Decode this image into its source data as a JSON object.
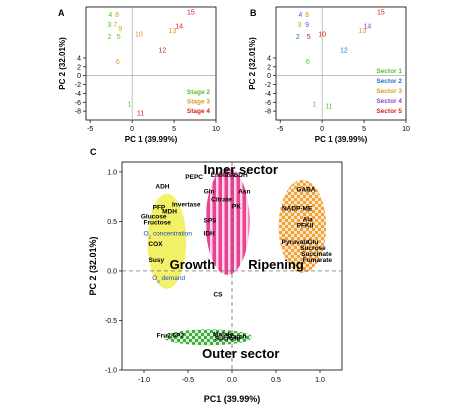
{
  "chart_data": [
    {
      "panel": "A",
      "type": "scatter",
      "xlabel": "PC 1 (39.99%)",
      "ylabel": "PC 2 (32.01%)",
      "xlim": [
        -5.5,
        10
      ],
      "ylim": [
        -10,
        15.5
      ],
      "xticks": [
        "-5",
        "0",
        "5",
        "10"
      ],
      "yticks": [
        "-8",
        "-6",
        "-4",
        "-2",
        "0",
        "2",
        "4"
      ],
      "colors": {
        "Stage 2": "#55c130",
        "Stage 3": "#d99a21",
        "Stage 4": "#d22222"
      },
      "legend": [
        "Stage 2",
        "Stage 3",
        "Stage 4"
      ],
      "legend_position": "bottom-right",
      "points": [
        {
          "label": "4",
          "x": -2.6,
          "y": 13.8,
          "group": "Stage 2"
        },
        {
          "label": "8",
          "x": -1.8,
          "y": 13.8,
          "group": "Stage 3"
        },
        {
          "label": "3",
          "x": -2.7,
          "y": 11.6,
          "group": "Stage 2"
        },
        {
          "label": "7",
          "x": -2.0,
          "y": 11.6,
          "group": "Stage 3"
        },
        {
          "label": "9",
          "x": -1.4,
          "y": 10.6,
          "group": "Stage 3"
        },
        {
          "label": "2",
          "x": -2.7,
          "y": 8.8,
          "group": "Stage 2"
        },
        {
          "label": "5",
          "x": -1.6,
          "y": 8.8,
          "group": "Stage 2"
        },
        {
          "label": "10",
          "x": 0.8,
          "y": 9.4,
          "group": "Stage 3"
        },
        {
          "label": "6",
          "x": -1.7,
          "y": 3.2,
          "group": "Stage 3"
        },
        {
          "label": "1",
          "x": -0.3,
          "y": -6.4,
          "group": "Stage 2"
        },
        {
          "label": "11",
          "x": 1.0,
          "y": -8.4,
          "group": "Stage 4"
        },
        {
          "label": "12",
          "x": 3.6,
          "y": 5.8,
          "group": "Stage 4"
        },
        {
          "label": "13",
          "x": 4.8,
          "y": 10.2,
          "group": "Stage 3"
        },
        {
          "label": "14",
          "x": 5.6,
          "y": 11.2,
          "group": "Stage 4"
        },
        {
          "label": "15",
          "x": 7.0,
          "y": 14.4,
          "group": "Stage 4"
        }
      ]
    },
    {
      "panel": "B",
      "type": "scatter",
      "xlabel": "PC 1 (39.99%)",
      "ylabel": "PC 2 (32.01%)",
      "xlim": [
        -5.5,
        10
      ],
      "ylim": [
        -10,
        15.5
      ],
      "xticks": [
        "-5",
        "0",
        "5",
        "10"
      ],
      "yticks": [
        "-8",
        "-6",
        "-4",
        "-2",
        "0",
        "2",
        "4"
      ],
      "colors": {
        "Sector 1": "#55c130",
        "Sector 2": "#1f6fd1",
        "Sector 3": "#d99a21",
        "Sector 4": "#8a44d0",
        "Sector 5": "#d22222"
      },
      "legend": [
        "Sector 1",
        "Sector 2",
        "Sector 3",
        "Sector 4",
        "Sector 5"
      ],
      "legend_position": "right",
      "points": [
        {
          "label": "4",
          "x": -2.6,
          "y": 13.8,
          "group": "Sector 4"
        },
        {
          "label": "8",
          "x": -1.8,
          "y": 13.8,
          "group": "Sector 3"
        },
        {
          "label": "3",
          "x": -2.7,
          "y": 11.6,
          "group": "Sector 3"
        },
        {
          "label": "9",
          "x": -1.8,
          "y": 11.6,
          "group": "Sector 4"
        },
        {
          "label": "2",
          "x": -2.9,
          "y": 8.8,
          "group": "Sector 2"
        },
        {
          "label": "5",
          "x": -1.6,
          "y": 8.8,
          "group": "Sector 5"
        },
        {
          "label": "10",
          "x": 0.0,
          "y": 9.4,
          "group": "Sector 5"
        },
        {
          "label": "6",
          "x": -1.7,
          "y": 3.2,
          "group": "Sector 1"
        },
        {
          "label": "1",
          "x": -0.9,
          "y": -6.4,
          "group": "Sector 1"
        },
        {
          "label": "11",
          "x": 0.8,
          "y": -6.8,
          "group": "Sector 1"
        },
        {
          "label": "12",
          "x": 2.6,
          "y": 5.8,
          "group": "Sector 2"
        },
        {
          "label": "13",
          "x": 4.8,
          "y": 10.2,
          "group": "Sector 3"
        },
        {
          "label": "14",
          "x": 5.4,
          "y": 11.2,
          "group": "Sector 4"
        },
        {
          "label": "15",
          "x": 7.0,
          "y": 14.4,
          "group": "Sector 5"
        }
      ]
    },
    {
      "panel": "C",
      "type": "scatter",
      "xlabel": "PC1 (39.99%)",
      "ylabel": "PC 2 (32.01%)",
      "xlim": [
        -1.25,
        1.25
      ],
      "ylim": [
        -1.0,
        1.1
      ],
      "xticks": [
        "-1.0",
        "-0.5",
        "0.0",
        "0.5",
        "1.0"
      ],
      "yticks": [
        "-1.0",
        "-0.5",
        "0.0",
        "0.5",
        "1.0"
      ],
      "region_labels": [
        "Inner sector",
        "Outer sector",
        "Growth",
        "Ripening"
      ],
      "clusters": [
        {
          "name": "growth",
          "color": "#f2f05a",
          "pattern": "solid",
          "cx": -0.74,
          "cy": 0.3,
          "rx": 0.22,
          "ry": 0.48
        },
        {
          "name": "inner",
          "color": "#e8338c",
          "pattern": "stripes",
          "cx": -0.05,
          "cy": 0.5,
          "rx": 0.25,
          "ry": 0.54
        },
        {
          "name": "ripening",
          "color": "#f09a2a",
          "pattern": "checker",
          "cx": 0.8,
          "cy": 0.45,
          "rx": 0.27,
          "ry": 0.47
        },
        {
          "name": "outer",
          "color": "#2fa52f",
          "pattern": "checker",
          "cx": -0.27,
          "cy": -0.67,
          "rx": 0.5,
          "ry": 0.08
        }
      ],
      "variables": [
        {
          "label": "ADH",
          "x": -0.79,
          "y": 0.83
        },
        {
          "label": "PFP",
          "x": -0.83,
          "y": 0.62
        },
        {
          "label": "MDH",
          "x": -0.71,
          "y": 0.58
        },
        {
          "label": "Invertase",
          "x": -0.52,
          "y": 0.65
        },
        {
          "label": "Glucose",
          "x": -0.89,
          "y": 0.53
        },
        {
          "label": "Fructose",
          "x": -0.85,
          "y": 0.47
        },
        {
          "label": "O2 concentration",
          "x": -0.73,
          "y": 0.36,
          "blue": true
        },
        {
          "label": "COX",
          "x": -0.87,
          "y": 0.25
        },
        {
          "label": "Susy",
          "x": -0.86,
          "y": 0.09
        },
        {
          "label": "O2 demand",
          "x": -0.72,
          "y": -0.09,
          "blue": true
        },
        {
          "label": "PEPC",
          "x": -0.43,
          "y": 0.93
        },
        {
          "label": "Enolase",
          "x": -0.1,
          "y": 0.95
        },
        {
          "label": "SDH",
          "x": 0.1,
          "y": 0.95
        },
        {
          "label": "Gln",
          "x": -0.26,
          "y": 0.78
        },
        {
          "label": "Asn",
          "x": 0.14,
          "y": 0.78
        },
        {
          "label": "Citrate",
          "x": -0.12,
          "y": 0.7
        },
        {
          "label": "PK",
          "x": 0.05,
          "y": 0.63
        },
        {
          "label": "SPS",
          "x": -0.25,
          "y": 0.49
        },
        {
          "label": "IDH",
          "x": -0.26,
          "y": 0.36
        },
        {
          "label": "GABA",
          "x": 0.84,
          "y": 0.8
        },
        {
          "label": "NADP-ME",
          "x": 0.74,
          "y": 0.61
        },
        {
          "label": "Ala",
          "x": 0.86,
          "y": 0.5
        },
        {
          "label": "PFKII",
          "x": 0.83,
          "y": 0.44
        },
        {
          "label": "Pyruvate",
          "x": 0.72,
          "y": 0.27
        },
        {
          "label": "Glu",
          "x": 0.92,
          "y": 0.27
        },
        {
          "label": "Sucrose",
          "x": 0.92,
          "y": 0.21
        },
        {
          "label": "Succinate",
          "x": 0.96,
          "y": 0.15
        },
        {
          "label": "Fumarate",
          "x": 0.97,
          "y": 0.09
        },
        {
          "label": "CS",
          "x": -0.16,
          "y": -0.26
        },
        {
          "label": "Fru2,6P2",
          "x": -0.7,
          "y": -0.67
        },
        {
          "label": "Malate",
          "x": -0.1,
          "y": -0.66
        },
        {
          "label": "Starch",
          "x": 0.05,
          "y": -0.68
        },
        {
          "label": "Sucrose",
          "x": -0.05,
          "y": -0.7
        }
      ]
    }
  ],
  "panel_letters": [
    "A",
    "B",
    "C"
  ],
  "legends": {
    "A": [
      "Stage 2",
      "Stage 3",
      "Stage 4"
    ],
    "B": [
      "Sector 1",
      "Sector 2",
      "Sector 3",
      "Sector 4",
      "Sector 5"
    ]
  }
}
